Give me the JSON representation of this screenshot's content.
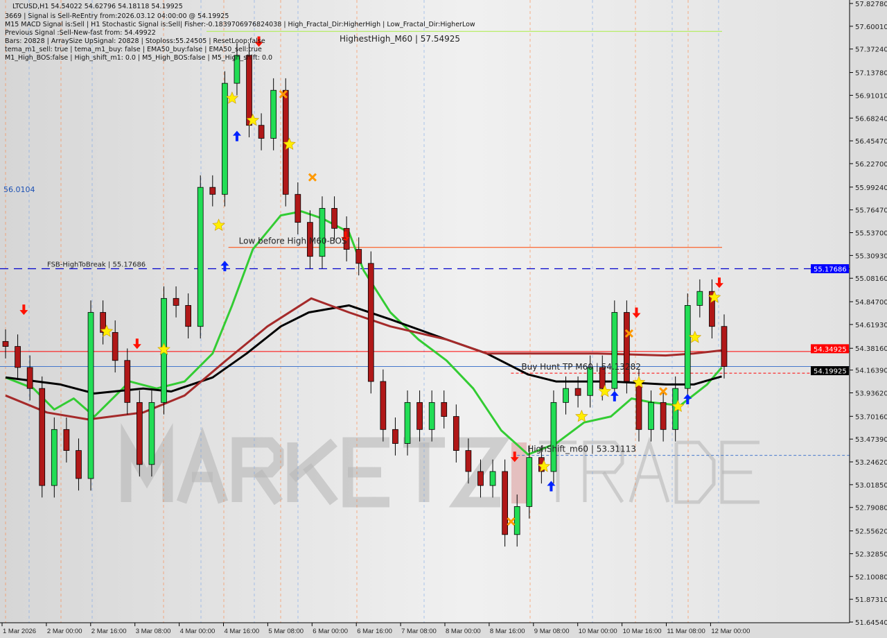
{
  "header": {
    "symbol_line": "LTCUSD,H1  54.54022 54.62796 54.18118 54.19925",
    "lines": [
      "3669 | Signal is Sell-ReEntry from:2026.03.12 04:00:00 @ 54.19925",
      "M15 MACD Signal is:Sell | H1 Stochastic Signal is:Sell| Fisher:-0.1839706976824038 | High_Fractal_Dir:HigherHigh | Low_Fractal_Dir:HigherLow",
      "Previous Signal :Sell-New-fast from: 54.49922",
      "Bars: 20828 | ArraySize UpSignal: 20828 | Stoploss:55.24505 | ResetLoop:false",
      "tema_m1_sell: true | tema_m1_buy: false | EMA50_buy:false | EMA50_sell:true",
      "M1_High_BOS:false | High_shift_m1: 0.0 | M5_High_BOS:false | M5_High_shift: 0.0"
    ]
  },
  "watermark": "MARKETZITRADE",
  "colors": {
    "bull": "#22dd55",
    "bear": "#b01818",
    "ema_green": "#33cc33",
    "ma_black": "#000000",
    "ma_brown": "#a52a2a",
    "fsb": "#0000cc",
    "sell_line": "#ff0000",
    "current": "#4477cc",
    "level_orange": "#ff4400",
    "top_level": "#aaee44"
  },
  "chart_data": {
    "type": "candlestick",
    "symbol": "LTCUSD",
    "timeframe": "H1",
    "ylim": [
      51.6454,
      57.8278
    ],
    "y_ticks": [
      "57.82780",
      "57.60010",
      "57.37240",
      "57.13780",
      "56.91010",
      "56.68240",
      "56.45470",
      "56.22700",
      "55.99240",
      "55.76470",
      "55.53700",
      "55.30930",
      "55.08160",
      "54.84700",
      "54.61930",
      "54.38160",
      "54.16390",
      "53.93620",
      "53.70160",
      "53.47390",
      "53.24620",
      "53.01850",
      "52.79080",
      "52.55620",
      "52.32850",
      "52.10080",
      "51.87310",
      "51.64540"
    ],
    "x_ticks": [
      "1 Mar 2026",
      "2 Mar 00:00",
      "2 Mar 16:00",
      "3 Mar 08:00",
      "4 Mar 00:00",
      "4 Mar 16:00",
      "5 Mar 08:00",
      "6 Mar 00:00",
      "6 Mar 16:00",
      "7 Mar 08:00",
      "8 Mar 00:00",
      "8 Mar 16:00",
      "9 Mar 08:00",
      "10 Mar 00:00",
      "10 Mar 16:00",
      "11 Mar 08:00",
      "12 Mar 00:00"
    ],
    "closes": [
      54.4,
      54.19,
      53.98,
      53.01,
      53.57,
      53.36,
      53.08,
      54.74,
      54.54,
      54.26,
      53.84,
      53.22,
      53.84,
      54.88,
      54.81,
      54.6,
      55.99,
      55.92,
      57.03,
      57.31,
      56.61,
      56.48,
      56.96,
      55.92,
      55.64,
      55.3,
      55.78,
      55.58,
      55.37,
      55.23,
      54.05,
      53.57,
      53.43,
      53.84,
      53.57,
      53.84,
      53.7,
      53.36,
      53.15,
      53.01,
      53.15,
      52.52,
      52.8,
      53.29,
      53.15,
      53.84,
      53.98,
      53.91,
      54.19,
      53.98,
      54.74,
      54.05,
      53.57,
      53.84,
      53.57,
      53.98,
      54.81,
      54.95,
      54.6,
      54.2
    ],
    "series": [
      {
        "key": "ema_green",
        "points": [
          [
            0,
            54.09
          ],
          [
            2.3,
            53.98
          ],
          [
            4,
            53.77
          ],
          [
            5.6,
            53.88
          ],
          [
            7.3,
            53.7
          ],
          [
            10.2,
            54.05
          ],
          [
            12.4,
            53.98
          ],
          [
            14.7,
            54.05
          ],
          [
            17,
            54.33
          ],
          [
            18.6,
            54.81
          ],
          [
            20.3,
            55.37
          ],
          [
            22.6,
            55.71
          ],
          [
            24.3,
            55.75
          ],
          [
            26,
            55.68
          ],
          [
            28.2,
            55.54
          ],
          [
            29.4,
            55.16
          ],
          [
            31.6,
            54.74
          ],
          [
            33.9,
            54.47
          ],
          [
            36.2,
            54.26
          ],
          [
            38.4,
            53.98
          ],
          [
            40.7,
            53.56
          ],
          [
            42.9,
            53.32
          ],
          [
            45.2,
            53.43
          ],
          [
            47.5,
            53.64
          ],
          [
            49.7,
            53.7
          ],
          [
            51.4,
            53.88
          ],
          [
            53.1,
            53.84
          ],
          [
            55.4,
            53.81
          ],
          [
            57.6,
            54.02
          ],
          [
            58.8,
            54.19
          ]
        ]
      },
      {
        "key": "ma_black",
        "points": [
          [
            0,
            54.09
          ],
          [
            4.5,
            54.02
          ],
          [
            7.3,
            53.93
          ],
          [
            11.3,
            53.98
          ],
          [
            13.6,
            53.95
          ],
          [
            17,
            54.09
          ],
          [
            19.8,
            54.33
          ],
          [
            22.6,
            54.6
          ],
          [
            24.9,
            54.74
          ],
          [
            28.2,
            54.81
          ],
          [
            31.6,
            54.67
          ],
          [
            36.2,
            54.47
          ],
          [
            39.5,
            54.33
          ],
          [
            42.9,
            54.12
          ],
          [
            45.2,
            54.05
          ],
          [
            49.7,
            54.05
          ],
          [
            54.2,
            54.02
          ],
          [
            56.5,
            54.02
          ],
          [
            58.8,
            54.1
          ]
        ]
      },
      {
        "key": "ma_brown",
        "points": [
          [
            0,
            53.91
          ],
          [
            3.4,
            53.74
          ],
          [
            6.8,
            53.67
          ],
          [
            11.3,
            53.74
          ],
          [
            14.7,
            53.91
          ],
          [
            18.1,
            54.26
          ],
          [
            21.5,
            54.6
          ],
          [
            25.1,
            54.88
          ],
          [
            28.2,
            54.74
          ],
          [
            31.6,
            54.6
          ],
          [
            36.2,
            54.47
          ],
          [
            39.5,
            54.33
          ],
          [
            42.9,
            54.33
          ],
          [
            48.6,
            54.33
          ],
          [
            54.2,
            54.31
          ],
          [
            56.5,
            54.33
          ],
          [
            58.8,
            54.36
          ]
        ]
      }
    ],
    "levels": [
      {
        "label": "HighestHigh_M60 | 57.54925",
        "price": 57.54925,
        "color": "top_level",
        "style": "solid",
        "from": 16.5
      },
      {
        "label": "Low before High    M60-BOS",
        "price": 55.39,
        "color": "level_orange",
        "style": "solid",
        "from": 18.3
      },
      {
        "label": "FSB-HighToBreak | 55.17686",
        "price": 55.17686,
        "color": "fsb",
        "style": "dash",
        "from": 0
      },
      {
        "label": "",
        "price": 54.34925,
        "color": "sell_line",
        "style": "solid",
        "from": 0
      },
      {
        "label": "",
        "price": 54.19925,
        "color": "current",
        "style": "solid",
        "from": 0
      },
      {
        "label": "Buy Hunt TP M60 | 54.13282",
        "price": 54.13282,
        "color": "sell_line",
        "style": "dot",
        "from": 41.5
      },
      {
        "label": "HighShift_m60 | 53.31113",
        "price": 53.31113,
        "color": "current",
        "style": "dot",
        "from": 42
      }
    ],
    "left_label": "56.0104",
    "price_tags": [
      {
        "text": "55.17686",
        "bg": "#0000ff",
        "price": 55.17686
      },
      {
        "text": "54.34925",
        "bg": "#ff0000",
        "price": 54.34925
      },
      {
        "text": "54.19925",
        "bg": "#000000",
        "price": 54.19925
      }
    ],
    "markers": [
      [
        1.5,
        54.77,
        "sell-arrow"
      ],
      [
        8.3,
        54.55,
        "star"
      ],
      [
        10.8,
        54.43,
        "sell-arrow"
      ],
      [
        13.0,
        54.37,
        "star"
      ],
      [
        17.5,
        55.61,
        "star"
      ],
      [
        18.0,
        55.2,
        "buy-arrow"
      ],
      [
        18.6,
        56.88,
        "star"
      ],
      [
        19.0,
        56.5,
        "buy-arrow"
      ],
      [
        20.3,
        56.66,
        "star"
      ],
      [
        20.8,
        57.45,
        "sell-arrow"
      ],
      [
        22.8,
        56.92,
        "cross"
      ],
      [
        23.3,
        56.42,
        "star"
      ],
      [
        25.2,
        56.09,
        "cross"
      ],
      [
        27.9,
        55.5,
        "sell-arrow"
      ],
      [
        41.5,
        52.65,
        "cross"
      ],
      [
        41.8,
        53.3,
        "sell-arrow"
      ],
      [
        44.2,
        53.2,
        "star"
      ],
      [
        44.8,
        53.0,
        "buy-arrow"
      ],
      [
        47.3,
        53.7,
        "star"
      ],
      [
        49.2,
        53.95,
        "star"
      ],
      [
        50.0,
        53.9,
        "buy-arrow"
      ],
      [
        51.2,
        54.53,
        "cross"
      ],
      [
        51.8,
        54.74,
        "sell-arrow"
      ],
      [
        52.0,
        54.04,
        "star"
      ],
      [
        54.0,
        53.95,
        "cross"
      ],
      [
        55.2,
        53.8,
        "star"
      ],
      [
        56.0,
        53.87,
        "buy-arrow"
      ],
      [
        56.6,
        54.49,
        "star"
      ],
      [
        58.2,
        54.89,
        "star"
      ],
      [
        58.6,
        55.04,
        "sell-arrow"
      ]
    ]
  }
}
